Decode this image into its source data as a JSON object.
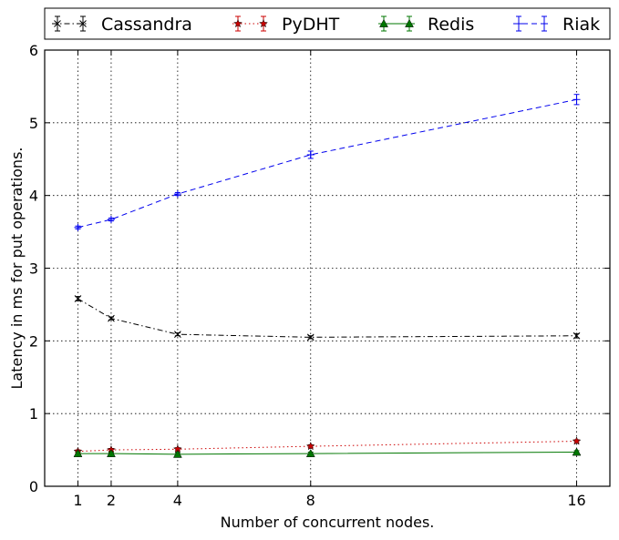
{
  "chart_data": {
    "type": "line",
    "title": "",
    "xlabel": "Number of concurrent nodes.",
    "ylabel": "Latency in ms for put operations.",
    "xlim": [
      0,
      17
    ],
    "ylim": [
      0,
      6
    ],
    "x_ticks": [
      1,
      2,
      4,
      8,
      16
    ],
    "y_ticks": [
      0,
      1,
      2,
      3,
      4,
      5,
      6
    ],
    "grid": true,
    "legend_position": "top",
    "x": [
      1,
      2,
      4,
      8,
      16
    ],
    "series": [
      {
        "name": "Cassandra",
        "color": "#000000",
        "marker": "x",
        "line_style": "dash-dot",
        "values": [
          2.58,
          2.31,
          2.09,
          2.05,
          2.07
        ],
        "errors": [
          0.03,
          0.02,
          0.02,
          0.02,
          0.03
        ]
      },
      {
        "name": "PyDHT",
        "color": "#cc0000",
        "marker": "star",
        "line_style": "dotted",
        "values": [
          0.48,
          0.5,
          0.51,
          0.55,
          0.62
        ],
        "errors": [
          0.02,
          0.02,
          0.02,
          0.02,
          0.02
        ]
      },
      {
        "name": "Redis",
        "color": "#007700",
        "marker": "triangle",
        "line_style": "solid",
        "values": [
          0.45,
          0.45,
          0.44,
          0.45,
          0.47
        ],
        "errors": [
          0.02,
          0.02,
          0.02,
          0.02,
          0.02
        ]
      },
      {
        "name": "Riak",
        "color": "#0000ee",
        "marker": "plus",
        "line_style": "dashed",
        "values": [
          3.56,
          3.67,
          4.02,
          4.56,
          5.32
        ],
        "errors": [
          0.02,
          0.02,
          0.02,
          0.05,
          0.07
        ]
      }
    ]
  }
}
